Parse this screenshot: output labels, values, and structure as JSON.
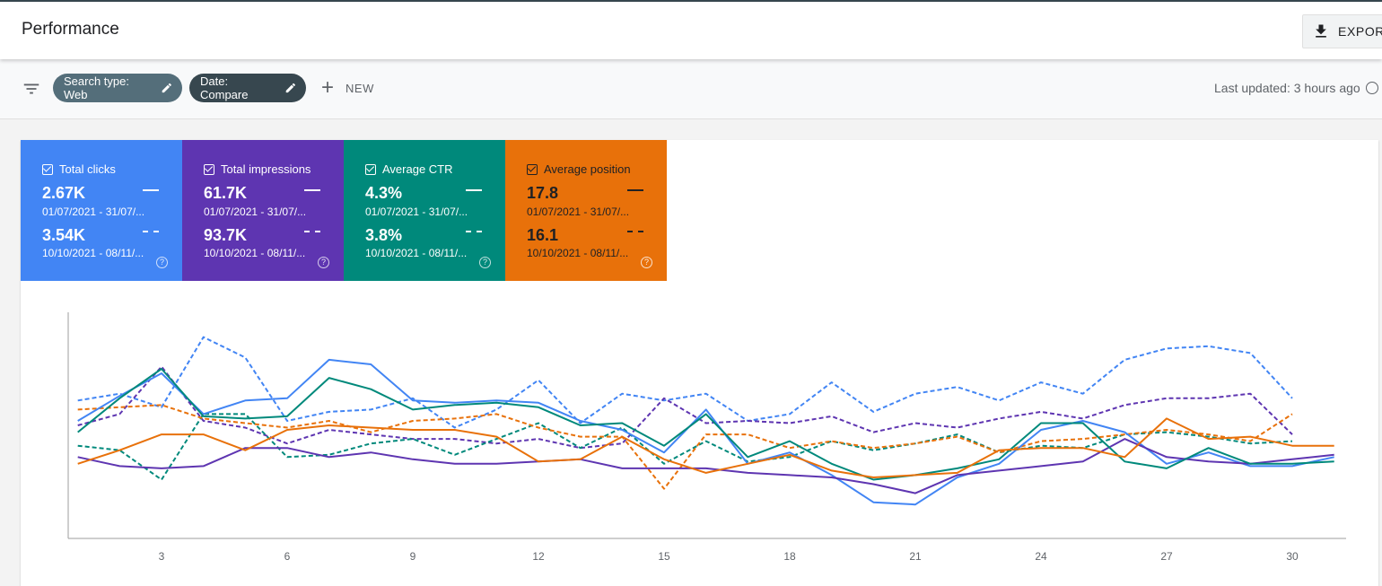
{
  "header": {
    "title": "Performance",
    "export_label": "EXPORT"
  },
  "filters": {
    "chips": [
      {
        "label": "Search type: Web"
      },
      {
        "label": "Date: Compare"
      }
    ],
    "new_label": "NEW",
    "last_updated": "Last updated: 3 hours ago"
  },
  "metrics": [
    {
      "name": "Total clicks",
      "value1": "2.67K",
      "date1": "01/07/2021 - 31/07/...",
      "value2": "3.54K",
      "date2": "10/10/2021 - 08/11/...",
      "color": "#4285f4"
    },
    {
      "name": "Total impressions",
      "value1": "61.7K",
      "date1": "01/07/2021 - 31/07/...",
      "value2": "93.7K",
      "date2": "10/10/2021 - 08/11/...",
      "color": "#5e35b1"
    },
    {
      "name": "Average CTR",
      "value1": "4.3%",
      "date1": "01/07/2021 - 31/07/...",
      "value2": "3.8%",
      "date2": "10/10/2021 - 08/11/...",
      "color": "#00897b"
    },
    {
      "name": "Average position",
      "value1": "17.8",
      "date1": "01/07/2021 - 31/07/...",
      "value2": "16.1",
      "date2": "10/10/2021 - 08/11/...",
      "color": "#e8710a"
    }
  ],
  "chart_data": {
    "type": "line",
    "x": [
      1,
      2,
      3,
      4,
      5,
      6,
      7,
      8,
      9,
      10,
      11,
      12,
      13,
      14,
      15,
      16,
      17,
      18,
      19,
      20,
      21,
      22,
      23,
      24,
      25,
      26,
      27,
      28,
      29,
      30,
      31
    ],
    "xticks": [
      3,
      6,
      9,
      12,
      15,
      18,
      21,
      24,
      27,
      30
    ],
    "ylim": [
      0,
      100
    ],
    "grid": false,
    "series": [
      {
        "metric": "Total clicks",
        "period": 1,
        "style": "solid",
        "color": "#4285f4",
        "values": [
          52,
          63,
          73,
          55,
          61,
          62,
          79,
          77,
          61,
          60,
          61,
          60,
          52,
          48,
          38,
          57,
          33,
          38,
          28,
          16,
          15,
          27,
          33,
          48,
          52,
          47,
          33,
          38,
          32,
          32,
          36
        ]
      },
      {
        "metric": "Total clicks",
        "period": 2,
        "style": "dashed",
        "color": "#4285f4",
        "values": [
          61,
          64,
          58,
          89,
          80,
          52,
          56,
          57,
          62,
          49,
          57,
          70,
          51,
          64,
          61,
          64,
          52,
          55,
          69,
          56,
          64,
          67,
          61,
          69,
          64,
          79,
          84,
          85,
          82,
          62,
          null
        ]
      },
      {
        "metric": "Total impressions",
        "period": 1,
        "style": "solid",
        "color": "#5e35b1",
        "values": [
          36,
          32,
          31,
          32,
          40,
          40,
          36,
          38,
          35,
          33,
          33,
          34,
          35,
          31,
          31,
          31,
          29,
          28,
          27,
          24,
          20,
          28,
          30,
          32,
          34,
          44,
          36,
          34,
          33,
          35,
          37
        ]
      },
      {
        "metric": "Total impressions",
        "period": 2,
        "style": "dashed",
        "color": "#5e35b1",
        "values": [
          50,
          55,
          76,
          52,
          49,
          42,
          48,
          46,
          44,
          44,
          42,
          44,
          40,
          42,
          62,
          51,
          52,
          51,
          54,
          47,
          51,
          49,
          53,
          56,
          53,
          59,
          62,
          62,
          64,
          46,
          null
        ]
      },
      {
        "metric": "Average CTR",
        "period": 1,
        "style": "solid",
        "color": "#00897b",
        "values": [
          47,
          62,
          75,
          54,
          53,
          54,
          71,
          66,
          57,
          59,
          60,
          58,
          50,
          51,
          41,
          55,
          36,
          43,
          33,
          26,
          28,
          31,
          35,
          51,
          51,
          34,
          31,
          40,
          33,
          33,
          34
        ]
      },
      {
        "metric": "Average CTR",
        "period": 2,
        "style": "dashed",
        "color": "#00897b",
        "values": [
          41,
          39,
          26,
          55,
          55,
          36,
          37,
          42,
          44,
          37,
          44,
          51,
          40,
          49,
          33,
          43,
          34,
          36,
          43,
          39,
          42,
          46,
          38,
          41,
          40,
          46,
          47,
          45,
          42,
          43,
          null
        ]
      },
      {
        "metric": "Average position",
        "period": 1,
        "style": "solid",
        "color": "#e8710a",
        "values": [
          33,
          39,
          46,
          46,
          39,
          48,
          50,
          49,
          48,
          48,
          45,
          34,
          35,
          45,
          35,
          29,
          33,
          37,
          30,
          27,
          28,
          29,
          39,
          40,
          40,
          36,
          53,
          44,
          45,
          41,
          41
        ]
      },
      {
        "metric": "Average position",
        "period": 2,
        "style": "dashed",
        "color": "#e8710a",
        "values": [
          57,
          58,
          59,
          53,
          51,
          49,
          52,
          47,
          52,
          53,
          55,
          49,
          45,
          45,
          22,
          46,
          46,
          40,
          43,
          40,
          42,
          45,
          38,
          43,
          44,
          46,
          48,
          46,
          43,
          55,
          null
        ]
      }
    ]
  }
}
